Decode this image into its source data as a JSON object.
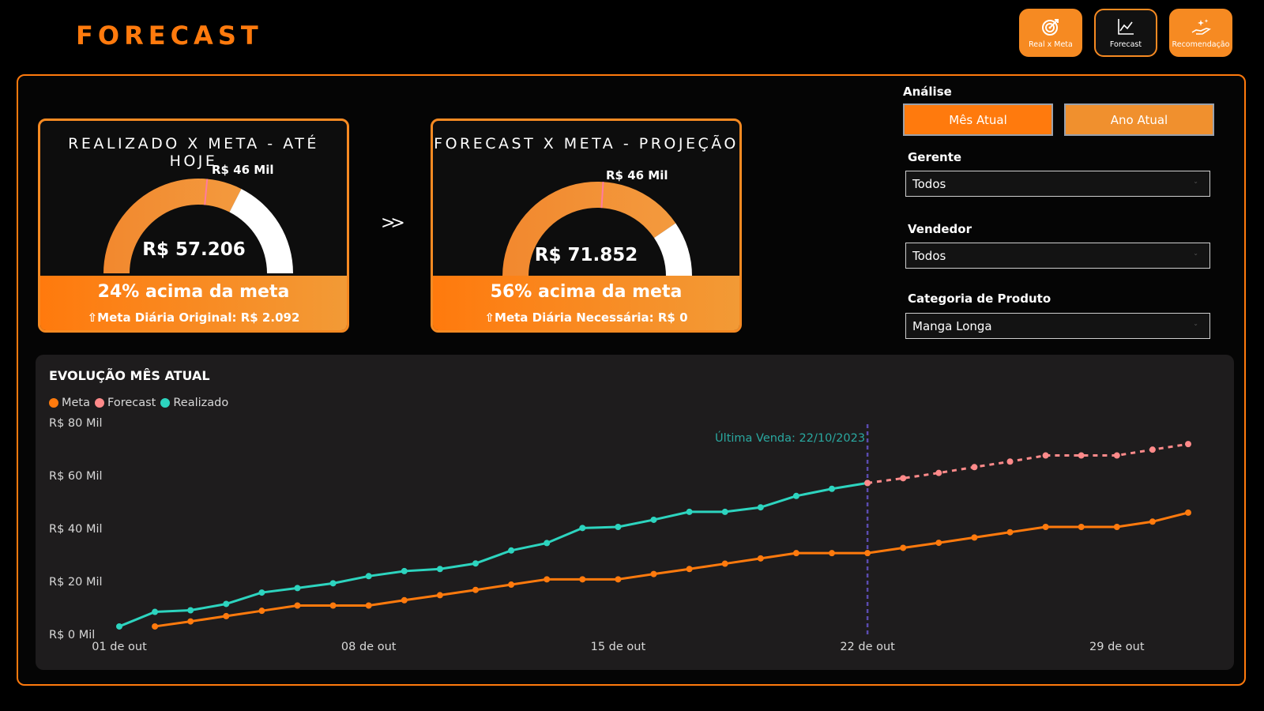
{
  "header": {
    "title": "FORECAST"
  },
  "nav": [
    {
      "label": "Real x Meta",
      "icon": "target-icon"
    },
    {
      "label": "Forecast",
      "icon": "line-chart-icon"
    },
    {
      "label": "Recomendação",
      "icon": "hand-sparkle-icon"
    }
  ],
  "cards": [
    {
      "title": "REALIZADO X META - ATÉ HOJE",
      "meta_label": "R$ 46 Mil",
      "value": "R$ 57.206",
      "percent_text": "24% acima da meta",
      "sub_text": "⇧Meta Diária Original: R$ 2.092",
      "fill_fraction": 0.65,
      "meta_fraction": 0.53
    },
    {
      "title": "FORECAST X META - PROJEÇÃO",
      "meta_label": "R$ 46 Mil",
      "value": "R$ 71.852",
      "percent_text": "56% acima da meta",
      "sub_text": "⇧Meta Diária Necessária: R$ 0",
      "fill_fraction": 0.81,
      "meta_fraction": 0.52
    }
  ],
  "filters": {
    "analysis_label": "Análise",
    "analysis_options": [
      "Mês Atual",
      "Ano Atual"
    ],
    "gerente_label": "Gerente",
    "gerente_value": "Todos",
    "vendedor_label": "Vendedor",
    "vendedor_value": "Todos",
    "categoria_label": "Categoria de Produto",
    "categoria_value": "Manga Longa"
  },
  "colors": {
    "accent": "#ff7a0d",
    "meta": "#ff7a0d",
    "forecast": "#ff8a8a",
    "realizado": "#2dd4bf",
    "vline": "#5b4bb0"
  },
  "chart_data": {
    "type": "line",
    "title": "EVOLUÇÃO MÊS ATUAL",
    "x_ticks": [
      "01 de out",
      "08 de out",
      "15 de out",
      "22 de out",
      "29 de out"
    ],
    "y_ticks": [
      "R$ 0 Mil",
      "R$ 20 Mil",
      "R$ 40 Mil",
      "R$ 60 Mil",
      "R$ 80 Mil"
    ],
    "ylim": [
      0,
      80000
    ],
    "annotation": "Última Venda: 22/10/2023",
    "annotation_day": 22,
    "series": [
      {
        "name": "Meta",
        "days": [
          2,
          3,
          4,
          5,
          6,
          7,
          8,
          9,
          10,
          11,
          12,
          13,
          14,
          15,
          16,
          17,
          18,
          19,
          20,
          21,
          22,
          23,
          24,
          25,
          26,
          27,
          28,
          29,
          30,
          31
        ],
        "values": [
          3000,
          4900,
          6900,
          8900,
          10900,
          10900,
          10900,
          12900,
          14800,
          16800,
          18800,
          20800,
          20800,
          20800,
          22800,
          24700,
          26700,
          28700,
          30700,
          30700,
          30700,
          32700,
          34600,
          36600,
          38600,
          40600,
          40600,
          40600,
          42600,
          46000
        ]
      },
      {
        "name": "Realizado",
        "days": [
          1,
          2,
          3,
          4,
          5,
          6,
          7,
          8,
          9,
          10,
          11,
          12,
          13,
          14,
          15,
          16,
          17,
          18,
          19,
          20,
          21,
          22
        ],
        "values": [
          3000,
          8500,
          9100,
          11500,
          15800,
          17500,
          19300,
          22000,
          23900,
          24700,
          26800,
          31700,
          34500,
          40200,
          40600,
          43300,
          46300,
          46300,
          48000,
          52300,
          55000,
          57200
        ]
      },
      {
        "name": "Forecast",
        "days": [
          22,
          23,
          24,
          25,
          26,
          27,
          28,
          29,
          30,
          31
        ],
        "values": [
          57200,
          59000,
          61000,
          63200,
          65300,
          67600,
          67600,
          67600,
          69800,
          71900
        ]
      }
    ]
  }
}
